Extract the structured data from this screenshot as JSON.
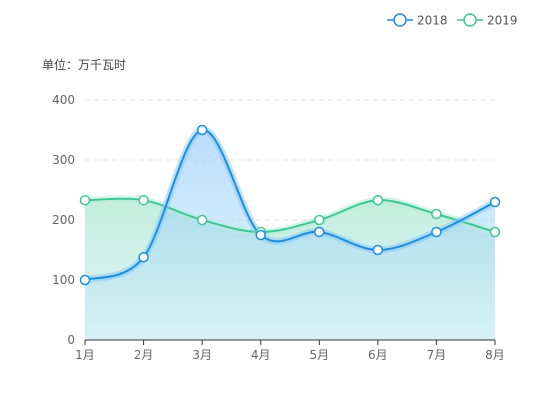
{
  "chart_data": {
    "type": "line",
    "unit_label": "单位：万千瓦时",
    "categories": [
      "1月",
      "2月",
      "3月",
      "4月",
      "5月",
      "6月",
      "7月",
      "8月"
    ],
    "ylim": [
      0,
      400
    ],
    "yticks": [
      0,
      100,
      200,
      300,
      400
    ],
    "grid": true,
    "legend_position": "top-right",
    "series": [
      {
        "name": "2018",
        "values": [
          100,
          138,
          350,
          175,
          180,
          150,
          180,
          230
        ],
        "color": "#1b8fe0",
        "fill": "#8cc8fb"
      },
      {
        "name": "2019",
        "values": [
          233,
          233,
          200,
          180,
          200,
          233,
          210,
          180
        ],
        "color": "#3ec796",
        "fill": "#b8ecd7"
      }
    ]
  }
}
